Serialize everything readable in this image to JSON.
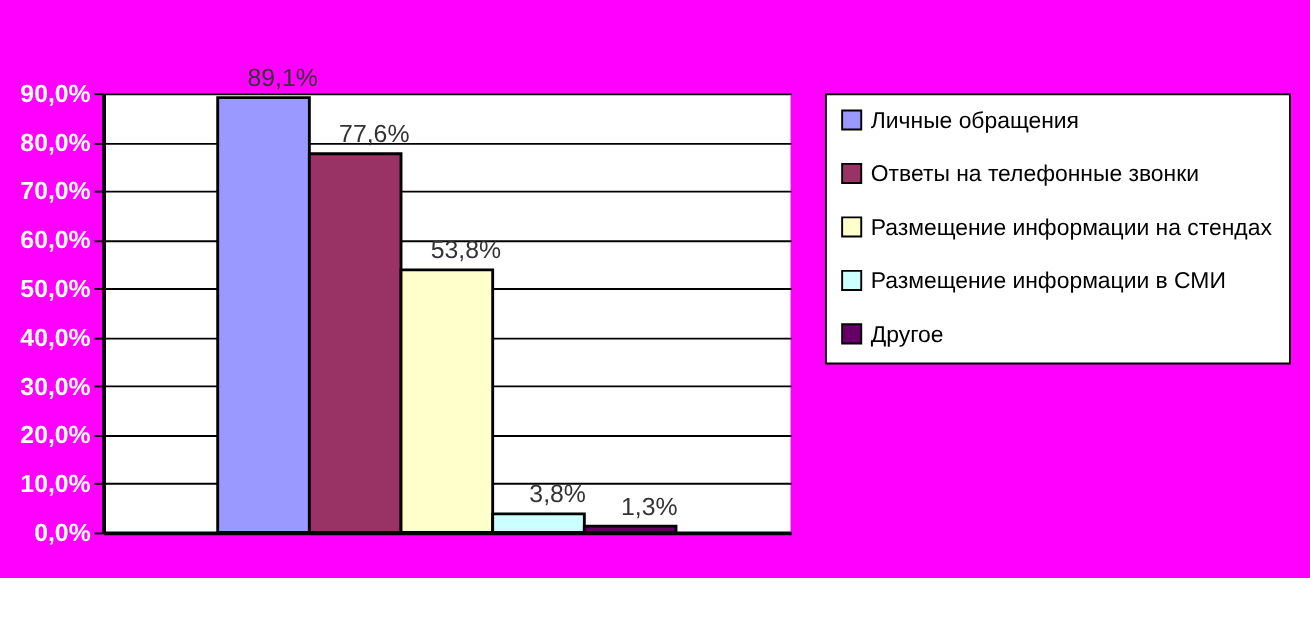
{
  "chart_data": {
    "type": "bar",
    "categories": [
      null
    ],
    "series": [
      {
        "name": "Личные обращения",
        "color": "#9999ff",
        "values": [
          89.1
        ],
        "value_labels": [
          "89,1%"
        ]
      },
      {
        "name": "Ответы на телефонные звонки",
        "color": "#993366",
        "values": [
          77.6
        ],
        "value_labels": [
          "77,6%"
        ]
      },
      {
        "name": "Размещение информации на стендах",
        "color": "#ffffcc",
        "values": [
          53.8
        ],
        "value_labels": [
          "53,8%"
        ]
      },
      {
        "name": "Размещение информации в СМИ",
        "color": "#ccffff",
        "values": [
          3.8
        ],
        "value_labels": [
          "3,8%"
        ]
      },
      {
        "name": "Другое",
        "color": "#660066",
        "values": [
          1.3
        ],
        "value_labels": [
          "1,3%"
        ]
      }
    ],
    "ylim": [
      0,
      90
    ],
    "yticks": [
      {
        "value": 0,
        "label": "0,0%"
      },
      {
        "value": 10,
        "label": "10,0%"
      },
      {
        "value": 20,
        "label": "20,0%"
      },
      {
        "value": 30,
        "label": "30,0%"
      },
      {
        "value": 40,
        "label": "40,0%"
      },
      {
        "value": 50,
        "label": "50,0%"
      },
      {
        "value": 60,
        "label": "60,0%"
      },
      {
        "value": 70,
        "label": "70,0%"
      },
      {
        "value": 80,
        "label": "80,0%"
      },
      {
        "value": 90,
        "label": "90,0%"
      }
    ],
    "grid": "y",
    "legend": "right",
    "tick_labels": "y"
  }
}
